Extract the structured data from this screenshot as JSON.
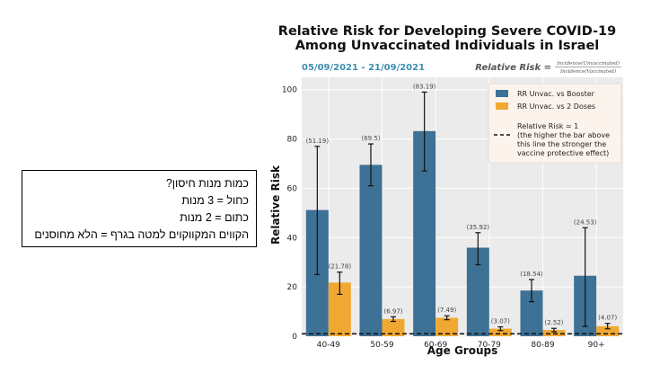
{
  "note_box": {
    "lines": [
      "כמות מנות חיסון?",
      "כחול = 3 מנות",
      "כתום = 2 מנות",
      "הקווים המקווקוים למטה בגרף = הלא מחוסנים"
    ]
  },
  "chart_data": {
    "type": "bar",
    "title": "Relative Risk for Developing Severe COVID-19",
    "subtitle": "Among Unvaccinated Individuals in Israel",
    "date_range": "05/09/2021 - 21/09/2021",
    "formula": {
      "lhs": "Relative Risk =",
      "numerator": "Incidence(Unvaccinated)",
      "denominator": "Incidence(Vaccinated)"
    },
    "xlabel": "Age Groups",
    "ylabel": "Relative Risk",
    "ylim": [
      0,
      105
    ],
    "yticks": [
      0,
      20,
      40,
      60,
      80,
      100
    ],
    "grid": true,
    "legend_position": "top-right",
    "categories": [
      "40-49",
      "50-59",
      "60-69",
      "70-79",
      "80-89",
      "90+"
    ],
    "series": [
      {
        "name": "RR Unvac. vs Booster",
        "color": "#3d7196",
        "values": [
          51.19,
          69.5,
          83.19,
          35.92,
          18.54,
          24.53
        ],
        "labels": [
          "(51.19)",
          "(69.5)",
          "(83.19)",
          "(35.92)",
          "(18.54)",
          "(24.53)"
        ],
        "err_low": [
          25,
          61,
          67,
          29,
          14,
          4
        ],
        "err_high": [
          77,
          78,
          99,
          42,
          23,
          44
        ]
      },
      {
        "name": "RR Unvac. vs 2 Doses",
        "color": "#f0a832",
        "values": [
          21.78,
          6.97,
          7.49,
          3.07,
          2.52,
          4.07
        ],
        "labels": [
          "(21.78)",
          "(6.97)",
          "(7.49)",
          "(3.07)",
          "(2.52)",
          "(4.07)"
        ],
        "err_low": [
          17,
          6,
          6.7,
          2.3,
          1.8,
          3
        ],
        "err_high": [
          26,
          7.9,
          8.3,
          3.8,
          3.2,
          5.2
        ]
      }
    ],
    "reference_line": {
      "value": 1,
      "label_lines": [
        "Relative Risk = 1",
        "(the higher the bar above",
        "this line the stronger the",
        "vaccine protective effect)"
      ]
    }
  }
}
